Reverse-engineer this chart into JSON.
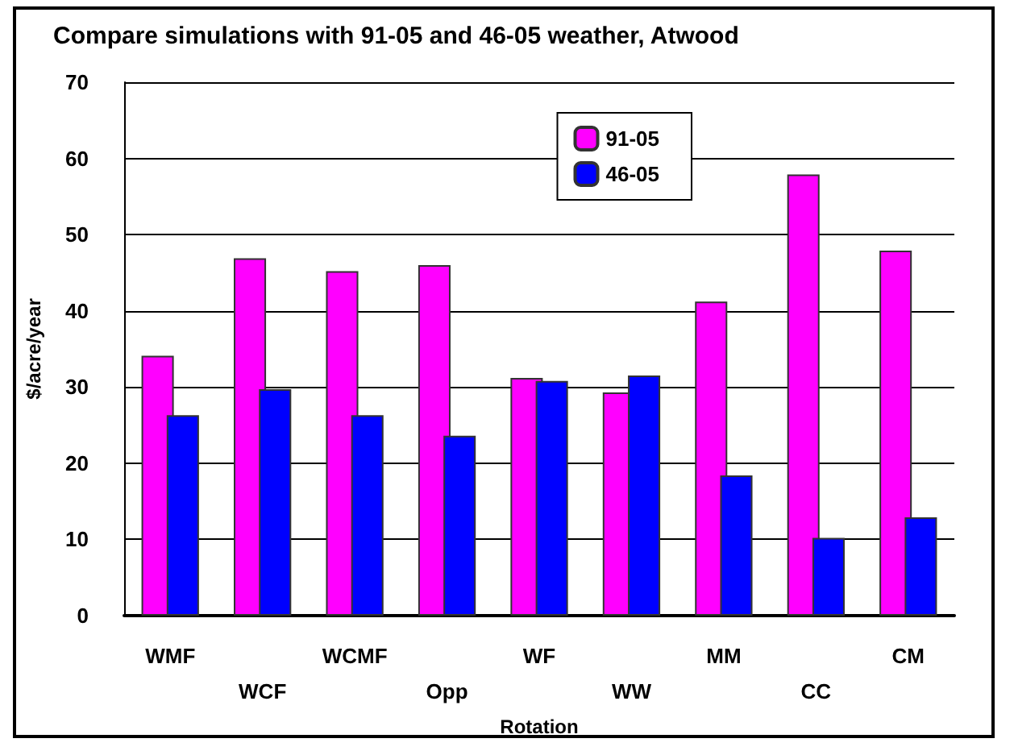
{
  "chart_data": {
    "type": "bar",
    "title": "Compare simulations with 91-05 and 46-05 weather, Atwood",
    "xlabel": "Rotation",
    "ylabel": "$/acre/year",
    "categories": [
      "WMF",
      "WCF",
      "WCMF",
      "Opp",
      "WF",
      "WW",
      "MM",
      "CC",
      "CM"
    ],
    "series": [
      {
        "name": "91-05",
        "color": "#ff00ff",
        "values": [
          34.1,
          46.9,
          45.2,
          46.0,
          31.2,
          29.3,
          41.2,
          57.9,
          47.9
        ]
      },
      {
        "name": "46-05",
        "color": "#0000ff",
        "values": [
          26.3,
          29.7,
          26.3,
          23.6,
          30.8,
          31.5,
          18.4,
          10.2,
          12.9
        ]
      }
    ],
    "ylim": [
      0,
      70
    ],
    "yticks": [
      0,
      10,
      20,
      30,
      40,
      50,
      60,
      70
    ],
    "grid": "y",
    "legend": "top right"
  }
}
